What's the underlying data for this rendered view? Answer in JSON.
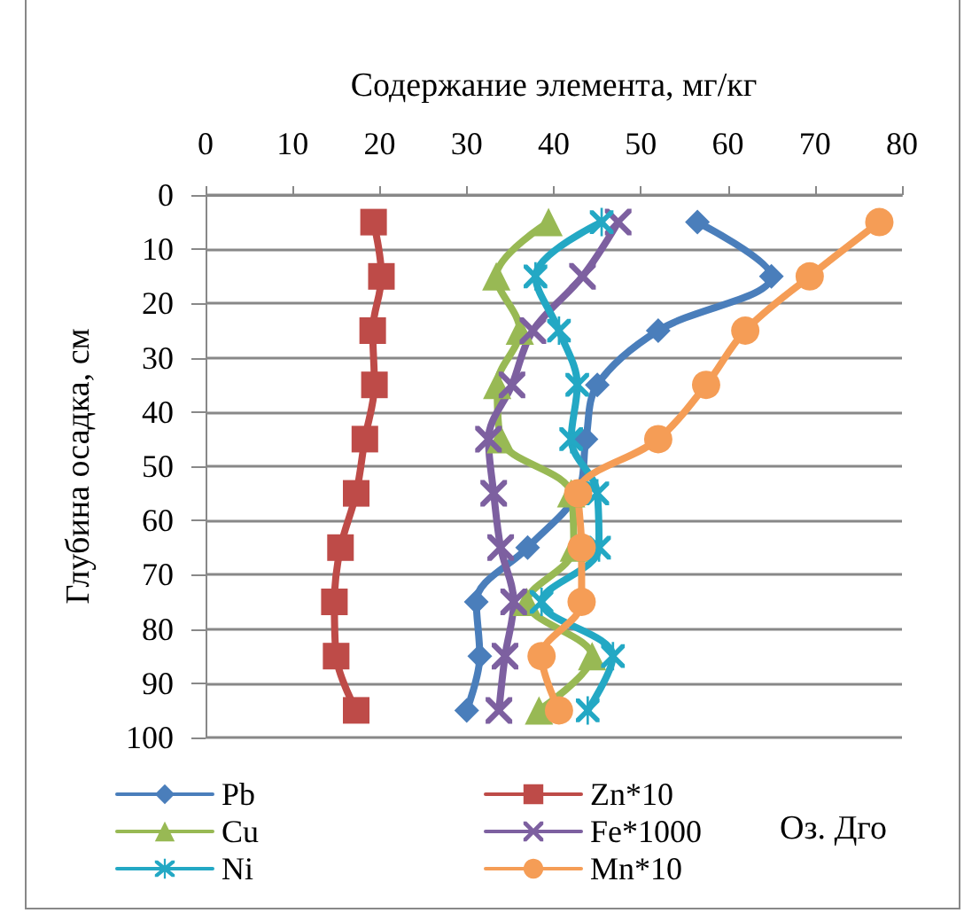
{
  "chart_data": {
    "type": "line",
    "xlabel": "Содержание элемента, мг/кг",
    "ylabel": "Глубина осадка, см",
    "xlim": [
      0,
      80
    ],
    "xticks": [
      0,
      10,
      20,
      30,
      40,
      50,
      60,
      70,
      80
    ],
    "ylim": [
      100,
      0
    ],
    "yticks": [
      0,
      10,
      20,
      30,
      40,
      50,
      60,
      70,
      80,
      90,
      100
    ],
    "grid": "y",
    "legend": "bottom",
    "line_style": "solid",
    "annotations": [
      "Оз. Дго"
    ],
    "series": [
      {
        "name": "Pb",
        "color": "#4a7ebb",
        "marker": "diamond",
        "x": [
          56.5,
          65,
          52,
          45,
          43.7,
          42.7,
          37,
          31.1,
          31.5,
          30
        ],
        "values": [
          5,
          15,
          25,
          35,
          45,
          55,
          65,
          75,
          85,
          95
        ]
      },
      {
        "name": "Zn*10",
        "color": "#be4b48",
        "marker": "square",
        "x": [
          19.3,
          20.2,
          19.2,
          19.4,
          18.3,
          17.3,
          15.5,
          14.8,
          15,
          17.3
        ],
        "values": [
          5,
          15,
          25,
          35,
          45,
          55,
          65,
          75,
          85,
          95
        ]
      },
      {
        "name": "Cu",
        "color": "#98b954",
        "marker": "triangle",
        "x": [
          39.4,
          33.4,
          36.1,
          33.5,
          33.9,
          42,
          42.3,
          36.9,
          44.4,
          38.3
        ],
        "values": [
          5,
          15,
          25,
          35,
          45,
          55,
          65,
          75,
          85,
          95
        ]
      },
      {
        "name": "Fe*1000",
        "color": "#7d60a0",
        "marker": "cross",
        "x": [
          47.4,
          43.3,
          37.6,
          35.2,
          32.5,
          33.1,
          33.9,
          35.4,
          34.4,
          33.7
        ],
        "values": [
          5,
          15,
          25,
          35,
          45,
          55,
          65,
          75,
          85,
          95
        ]
      },
      {
        "name": "Ni",
        "color": "#23a8c4",
        "marker": "star",
        "x": [
          45.5,
          37.9,
          40.6,
          42.7,
          42,
          45,
          45.2,
          38.6,
          46.8,
          43.9
        ],
        "values": [
          5,
          15,
          25,
          35,
          45,
          55,
          65,
          75,
          85,
          95
        ]
      },
      {
        "name": "Mn*10",
        "color": "#f59d56",
        "marker": "circle",
        "x": [
          77.4,
          69.4,
          62,
          57.5,
          52,
          42.8,
          43.2,
          43.2,
          38.6,
          40.6
        ],
        "values": [
          5,
          15,
          25,
          35,
          45,
          55,
          65,
          75,
          85,
          95
        ]
      }
    ]
  }
}
